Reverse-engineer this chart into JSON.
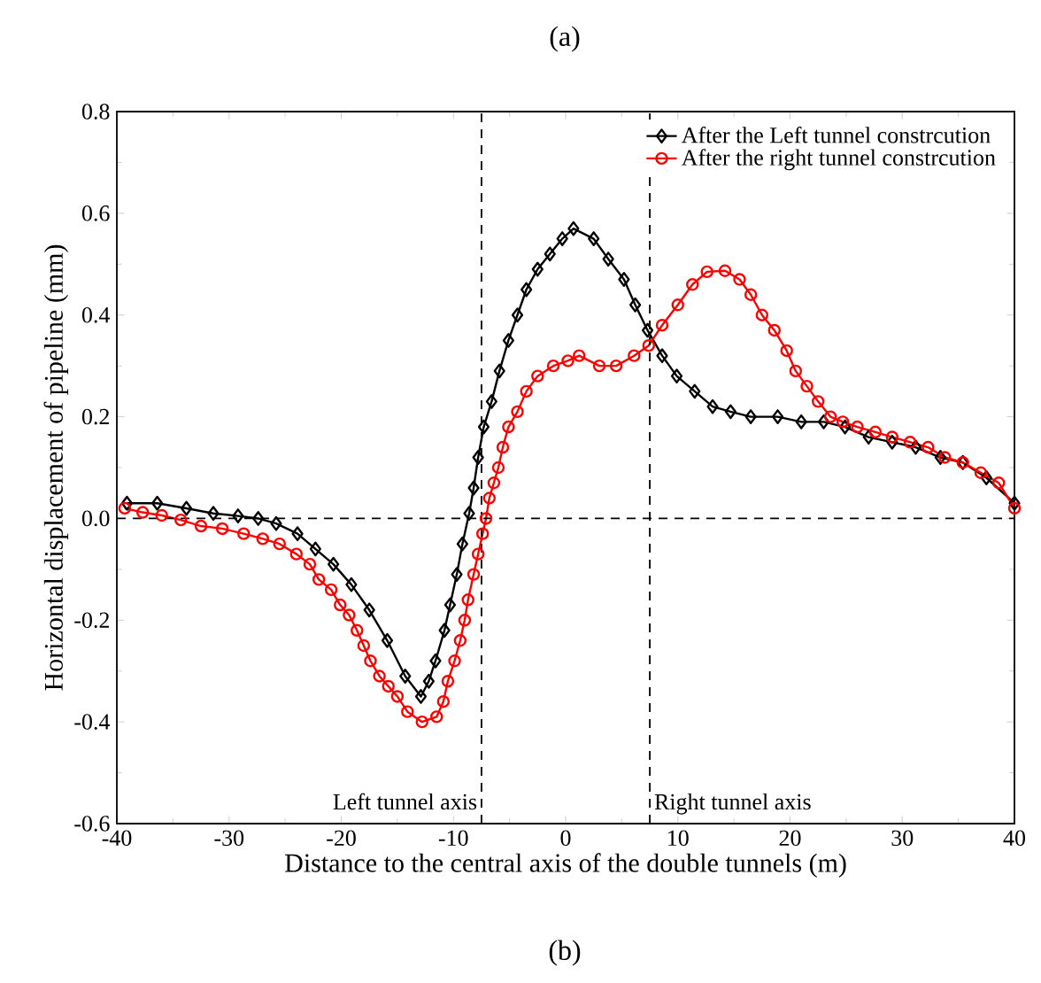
{
  "chart_data": {
    "type": "line",
    "title": "(a)",
    "xlabel": "Distance to the central axis of the double tunnels (m)",
    "ylabel": "Horizontal displacement of pipeline (mm)",
    "annotations": [
      "(b)"
    ],
    "xlim": [
      -40,
      40
    ],
    "xticks": [
      -40,
      -30,
      -20,
      -10,
      0,
      10,
      20,
      30,
      40
    ],
    "ylim": [
      -0.6,
      0.8
    ],
    "yticks": [
      -0.6,
      -0.4,
      -0.2,
      {
        "value": 0,
        "label": "0.0"
      },
      0.2,
      0.4,
      0.6,
      0.8
    ],
    "legend": "top right",
    "line_style": "solid",
    "ref_lines": [
      {
        "axis": "y",
        "value": 0,
        "line_style": "dashed"
      },
      {
        "axis": "x",
        "value": -7.5,
        "label": "Left tunnel axis",
        "line_style": "dashed"
      },
      {
        "axis": "x",
        "value": 7.5,
        "label": "Right tunnel axis",
        "line_style": "dashed"
      }
    ],
    "series": [
      {
        "name": "After the Left tunnel constrcution",
        "color": "#000000",
        "marker": "diamond",
        "x": [
          -39.1,
          -36.4,
          -33.8,
          -31.4,
          -29.2,
          -27.4,
          -25.8,
          -23.9,
          -22.3,
          -20.7,
          -19.1,
          -17.5,
          -15.9,
          -14.3,
          -12.9,
          -12.2,
          -11.6,
          -10.8,
          -10.3,
          -9.7,
          -9.2,
          -8.6,
          -8.2,
          -7.8,
          -7.3,
          -6.6,
          -5.9,
          -5.1,
          -4.3,
          -3.5,
          -2.5,
          -1.4,
          -0.3,
          0.7,
          2.5,
          3.8,
          5.2,
          6.2,
          7.3,
          8.6,
          9.9,
          11.5,
          13.1,
          14.7,
          16.5,
          18.9,
          21,
          23,
          24.9,
          27,
          29.1,
          31.2,
          33.4,
          35.4,
          37.5,
          40
        ],
        "values": [
          0.03,
          0.03,
          0.02,
          0.01,
          0.005,
          0,
          -0.01,
          -0.03,
          -0.06,
          -0.09,
          -0.13,
          -0.18,
          -0.24,
          -0.31,
          -0.35,
          -0.32,
          -0.28,
          -0.22,
          -0.17,
          -0.11,
          -0.05,
          0.01,
          0.06,
          0.12,
          0.18,
          0.23,
          0.29,
          0.35,
          0.4,
          0.45,
          0.49,
          0.52,
          0.55,
          0.57,
          0.55,
          0.51,
          0.47,
          0.42,
          0.37,
          0.32,
          0.28,
          0.25,
          0.22,
          0.21,
          0.2,
          0.2,
          0.19,
          0.19,
          0.18,
          0.16,
          0.15,
          0.14,
          0.12,
          0.11,
          0.08,
          0.03
        ]
      },
      {
        "name": "After the right tunnel constrcution",
        "color": "#ff0000",
        "marker": "circle",
        "x": [
          -39.3,
          -37.7,
          -36,
          -34.3,
          -32.5,
          -30.6,
          -28.7,
          -27,
          -25.5,
          -24,
          -22.8,
          -22,
          -20.9,
          -20.1,
          -19.3,
          -18.6,
          -18,
          -17.4,
          -16.6,
          -15.8,
          -15,
          -14.1,
          -12.8,
          -11.5,
          -10.9,
          -10.5,
          -9.9,
          -9.4,
          -9,
          -8.7,
          -8.2,
          -7.8,
          -7.4,
          -7.1,
          -6.8,
          -6.4,
          -6,
          -5.6,
          -5.1,
          -4.3,
          -3.5,
          -2.5,
          -1.1,
          0.2,
          1.2,
          3,
          4.5,
          6.1,
          7.4,
          8.6,
          10,
          11.3,
          12.6,
          14.2,
          15.5,
          16.5,
          17.5,
          18.6,
          19.7,
          20.5,
          21.5,
          22.5,
          23.6,
          24.7,
          26,
          27.6,
          29.1,
          30.7,
          32.3,
          33.8,
          35.4,
          37,
          38.6,
          40
        ],
        "values": [
          0.02,
          0.012,
          0.006,
          -0.003,
          -0.015,
          -0.02,
          -0.03,
          -0.04,
          -0.05,
          -0.07,
          -0.09,
          -0.12,
          -0.14,
          -0.17,
          -0.19,
          -0.22,
          -0.25,
          -0.28,
          -0.31,
          -0.33,
          -0.35,
          -0.38,
          -0.4,
          -0.39,
          -0.36,
          -0.32,
          -0.28,
          -0.24,
          -0.2,
          -0.16,
          -0.11,
          -0.07,
          -0.03,
          0,
          0.04,
          0.07,
          0.1,
          0.14,
          0.18,
          0.21,
          0.25,
          0.28,
          0.3,
          0.31,
          0.32,
          0.3,
          0.3,
          0.32,
          0.34,
          0.38,
          0.42,
          0.46,
          0.485,
          0.487,
          0.47,
          0.44,
          0.4,
          0.37,
          0.33,
          0.29,
          0.26,
          0.23,
          0.2,
          0.19,
          0.18,
          0.17,
          0.16,
          0.15,
          0.14,
          0.12,
          0.11,
          0.09,
          0.07,
          0.02
        ]
      }
    ]
  }
}
